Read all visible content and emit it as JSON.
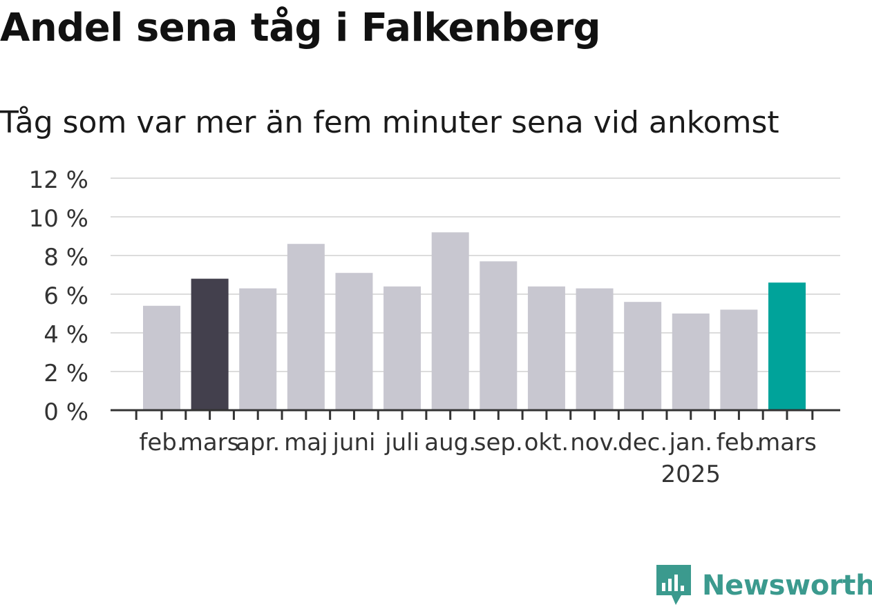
{
  "header": {
    "title": "Andel sena tåg i Falkenberg",
    "subtitle": "Tåg som var mer än fem minuter sena vid ankomst"
  },
  "brand": {
    "name": "Newsworthy",
    "icon": "newsworthy-logo-icon",
    "color": "#3b9a8e"
  },
  "chart_data": {
    "type": "bar",
    "categories": [
      "feb.",
      "mars",
      "apr.",
      "maj",
      "juni",
      "juli",
      "aug.",
      "sep.",
      "okt.",
      "nov.",
      "dec.",
      "jan.",
      "feb.",
      "mars"
    ],
    "year_labels": [
      "",
      "",
      "",
      "",
      "",
      "",
      "",
      "",
      "",
      "",
      "",
      "2025",
      "",
      ""
    ],
    "values": [
      5.4,
      6.8,
      6.3,
      8.6,
      7.1,
      6.4,
      9.2,
      7.7,
      6.4,
      6.3,
      5.6,
      5.0,
      5.2,
      6.6
    ],
    "bar_colors": [
      "#c8c7d0",
      "#43404d",
      "#c8c7d0",
      "#c8c7d0",
      "#c8c7d0",
      "#c8c7d0",
      "#c8c7d0",
      "#c8c7d0",
      "#c8c7d0",
      "#c8c7d0",
      "#c8c7d0",
      "#c8c7d0",
      "#c8c7d0",
      "#00a39a"
    ],
    "yticks": [
      0,
      2,
      4,
      6,
      8,
      10,
      12
    ],
    "ytick_labels": [
      "0 %",
      "2 %",
      "4 %",
      "6 %",
      "8 %",
      "10 %",
      "12 %"
    ],
    "ylim": [
      0,
      12
    ],
    "grid": true,
    "title": "Andel sena tåg i Falkenberg",
    "xlabel": "",
    "ylabel": ""
  }
}
